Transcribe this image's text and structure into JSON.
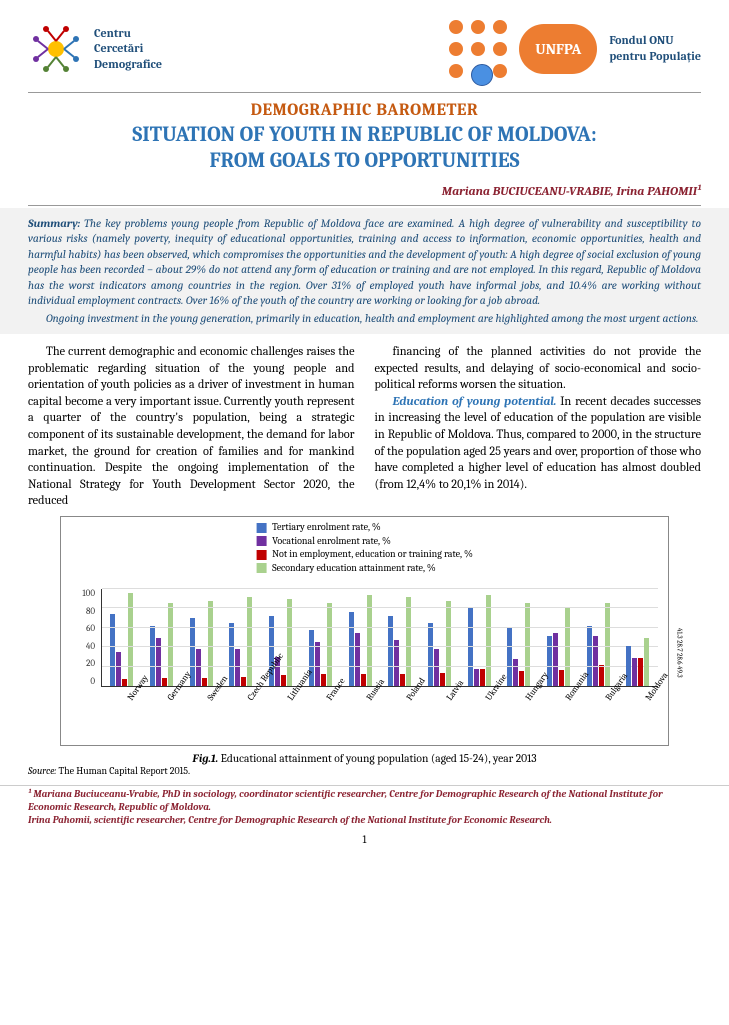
{
  "header": {
    "org_left": {
      "line1": "Centru",
      "line2": "Cercetări",
      "line3": "Demografice"
    },
    "unfpa": "UNFPA",
    "org_right": {
      "line1": "Fondul ONU",
      "line2": "pentru Populație"
    }
  },
  "title": {
    "barometer": "DEMOGRAPHIC BAROMETER",
    "main_line1": "SITUATION OF YOUTH IN REPUBLIC OF MOLDOVA:",
    "main_line2": "FROM GOALS TO OPPORTUNITIES"
  },
  "authors": "Mariana  BUCIUCEANU-VRABIE, Irina  PAHOMII¹",
  "summary": {
    "lead": "Summary:",
    "p1": " The key problems young people from Republic of Moldova face are examined. A high degree of vulnerability and susceptibility to various risks (namely poverty, inequity of educational opportunities, training and access to information, economic opportunities, health and harmful habits) has been observed, which compromises the opportunities and the development of youth: A high degree of social exclusion of young people has been recorded – about 29% do not attend any form of education or training and are not employed. In this regard, Republic of Moldova has the worst indicators among countries in the region. Over 31% of employed youth have informal jobs, and 10.4% are working without individual employment contracts. Over 16% of the youth of the country are working or looking for a job abroad.",
    "p2": "Ongoing investment in the young generation, primarily in education, health and employment are highlighted among the most urgent actions."
  },
  "body": {
    "col1": "The current demographic and economic challenges raises the problematic regarding situation of the young people and orientation of youth policies as a driver of investment in human capital become a very important issue. Currently youth represent a quarter of the country's population, being a strategic component of its sustainable development, the demand for labor market, the ground for creation of families and for mankind continuation. Despite the ongoing implementation of the National Strategy for Youth Development Sector 2020, the reduced",
    "col2a": "financing of the planned activities do not provide the expected results, and delaying of socio-economical and socio-political reforms worsen the situation.",
    "col2_lead": "Education of young potential.",
    "col2b": " In recent decades successes in increasing the level of education of the population are visible in Republic of Moldova. Thus, compared to 2000, in the structure of the population aged 25 years and over, proportion of those who have completed a higher level of education has almost doubled (from 12,4% to 20,1% in 2014)."
  },
  "chart": {
    "legend": [
      {
        "label": "Tertiary enrolment rate, %",
        "color": "#4472c4"
      },
      {
        "label": "Vocational enrolment rate, %",
        "color": "#7030a0"
      },
      {
        "label": "Not in employment, education or training rate, %",
        "color": "#c00000"
      },
      {
        "label": "Secondary education attainment rate, %",
        "color": "#a9d18e"
      }
    ],
    "ymax": 100,
    "yticks": [
      "100",
      "80",
      "60",
      "40",
      "20",
      "0"
    ],
    "countries": [
      "Norway",
      "Germany",
      "Sweden",
      "Czech Republic",
      "Lithuania",
      "France",
      "Russia",
      "Poland",
      "Latvia",
      "Ukraine",
      "Hungary",
      "Romania",
      "Bulgaria",
      "Moldova"
    ],
    "series": {
      "tertiary": [
        74,
        62,
        70,
        65,
        72,
        58,
        76,
        72,
        65,
        80,
        60,
        52,
        62,
        41.3
      ],
      "vocational": [
        35,
        50,
        38,
        38,
        30,
        45,
        55,
        48,
        38,
        18,
        28,
        55,
        52,
        28.7
      ],
      "neet": [
        7,
        8,
        8,
        9,
        11,
        12,
        12,
        12,
        13,
        18,
        16,
        17,
        22,
        28.6
      ],
      "secondary": [
        96,
        86,
        88,
        92,
        90,
        86,
        94,
        92,
        88,
        94,
        86,
        80,
        86,
        49.3
      ]
    },
    "last_labels": [
      "41.3",
      "28.7",
      "28.6",
      "49.3"
    ],
    "colors": {
      "tertiary": "#4472c4",
      "vocational": "#7030a0",
      "neet": "#c00000",
      "secondary": "#a9d18e"
    }
  },
  "caption": {
    "fig": "Fig.1.",
    "text": " Educational attainment of young population (aged 15-24), year 2013"
  },
  "source": {
    "label": "Source:",
    "text": "  The Human Capital Report 2015."
  },
  "footnote": {
    "l1": "¹ Mariana Buciuceanu-Vrabie, PhD in sociology, coordinator scientific researcher, Centre for Demographic Research of the National Institute for Economic Research, Republic of Moldova.",
    "l2": "Irina Pahomii, scientific researcher, Centre for Demographic Research of the National Institute for Economic Research."
  },
  "page_number": "1"
}
